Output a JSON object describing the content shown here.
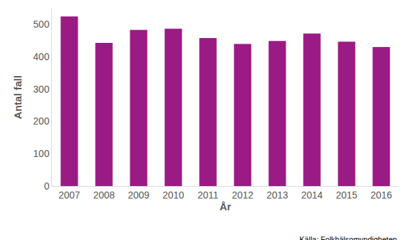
{
  "chart_data": {
    "type": "bar",
    "x_label": "År",
    "y_label": "Antal fall",
    "categories": [
      "2007",
      "2008",
      "2009",
      "2010",
      "2011",
      "2012",
      "2013",
      "2014",
      "2015",
      "2016"
    ],
    "values": [
      525,
      443,
      483,
      487,
      458,
      440,
      449,
      472,
      447,
      430
    ],
    "color": "#9b1b85",
    "ylim": [
      0,
      550
    ],
    "yticks": [
      0,
      100,
      200,
      300,
      400,
      500
    ],
    "grid": false,
    "annotations": [
      "Källa: Folkhälsomyndigheten"
    ]
  }
}
